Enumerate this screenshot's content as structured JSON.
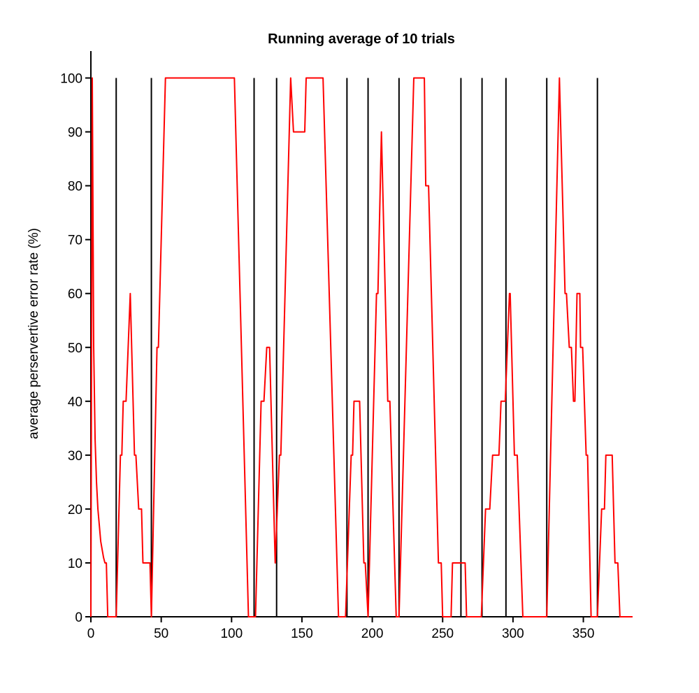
{
  "chart_data": {
    "type": "line",
    "title": "Running average of 10 trials",
    "y_label": "average perservertive error rate (%)",
    "color": "#ff0000",
    "x": [
      0,
      1,
      2,
      3,
      4,
      5,
      6,
      7,
      8,
      9,
      10,
      11,
      12,
      18,
      21,
      22,
      23,
      25,
      28,
      31,
      32,
      34,
      36,
      37,
      42,
      43,
      47,
      48,
      53,
      102,
      112,
      117,
      121,
      123,
      125,
      127,
      131,
      134,
      135,
      142,
      144,
      152,
      153,
      165,
      176,
      181,
      185,
      186,
      187,
      191,
      194,
      195,
      197,
      203,
      204,
      206.5,
      211,
      212.5,
      217,
      219,
      229.5,
      237,
      238,
      240,
      247,
      249,
      250,
      256,
      257,
      266,
      267,
      277.5,
      280.5,
      283.5,
      285.5,
      290,
      291.5,
      294.5,
      297.5,
      298,
      301,
      303,
      307,
      324,
      333,
      337,
      338,
      340,
      341.5,
      343,
      344,
      345.5,
      347.5,
      348,
      349.5,
      352,
      353,
      355.5,
      360,
      363,
      365,
      366,
      370.5,
      372.5,
      374.5,
      376,
      385
    ],
    "values": [
      0,
      100,
      50,
      33,
      25,
      20,
      17,
      14,
      12.5,
      11,
      10,
      10,
      0,
      0,
      30,
      30,
      40,
      40,
      60,
      30,
      30,
      20,
      20,
      10,
      10,
      0,
      50,
      50,
      100,
      100,
      0,
      0,
      40,
      40,
      50,
      50,
      10,
      30,
      30,
      100,
      90,
      90,
      100,
      100,
      0,
      0,
      30,
      30,
      40,
      40,
      10,
      10,
      0,
      60,
      60,
      90,
      40,
      40,
      0,
      0,
      100,
      100,
      80,
      80,
      10,
      10,
      0,
      0,
      10,
      10,
      0,
      0,
      20,
      20,
      30,
      30,
      40,
      40,
      60,
      60,
      30,
      30,
      0,
      0,
      100,
      60,
      60,
      50,
      50,
      40,
      40,
      60,
      60,
      50,
      50,
      30,
      30,
      0,
      0,
      20,
      20,
      30,
      30,
      10,
      10,
      0,
      0
    ],
    "vlines": {
      "color": "#000000",
      "x": [
        18,
        43,
        116,
        132,
        182,
        197,
        219,
        263,
        278,
        295,
        324,
        360
      ]
    },
    "xlim": [
      0,
      385
    ],
    "ylim": [
      0,
      105
    ],
    "xticks": [
      0,
      50,
      100,
      150,
      200,
      250,
      300,
      350
    ],
    "yticks": [
      0,
      10,
      20,
      30,
      40,
      50,
      60,
      70,
      80,
      90,
      100
    ]
  }
}
